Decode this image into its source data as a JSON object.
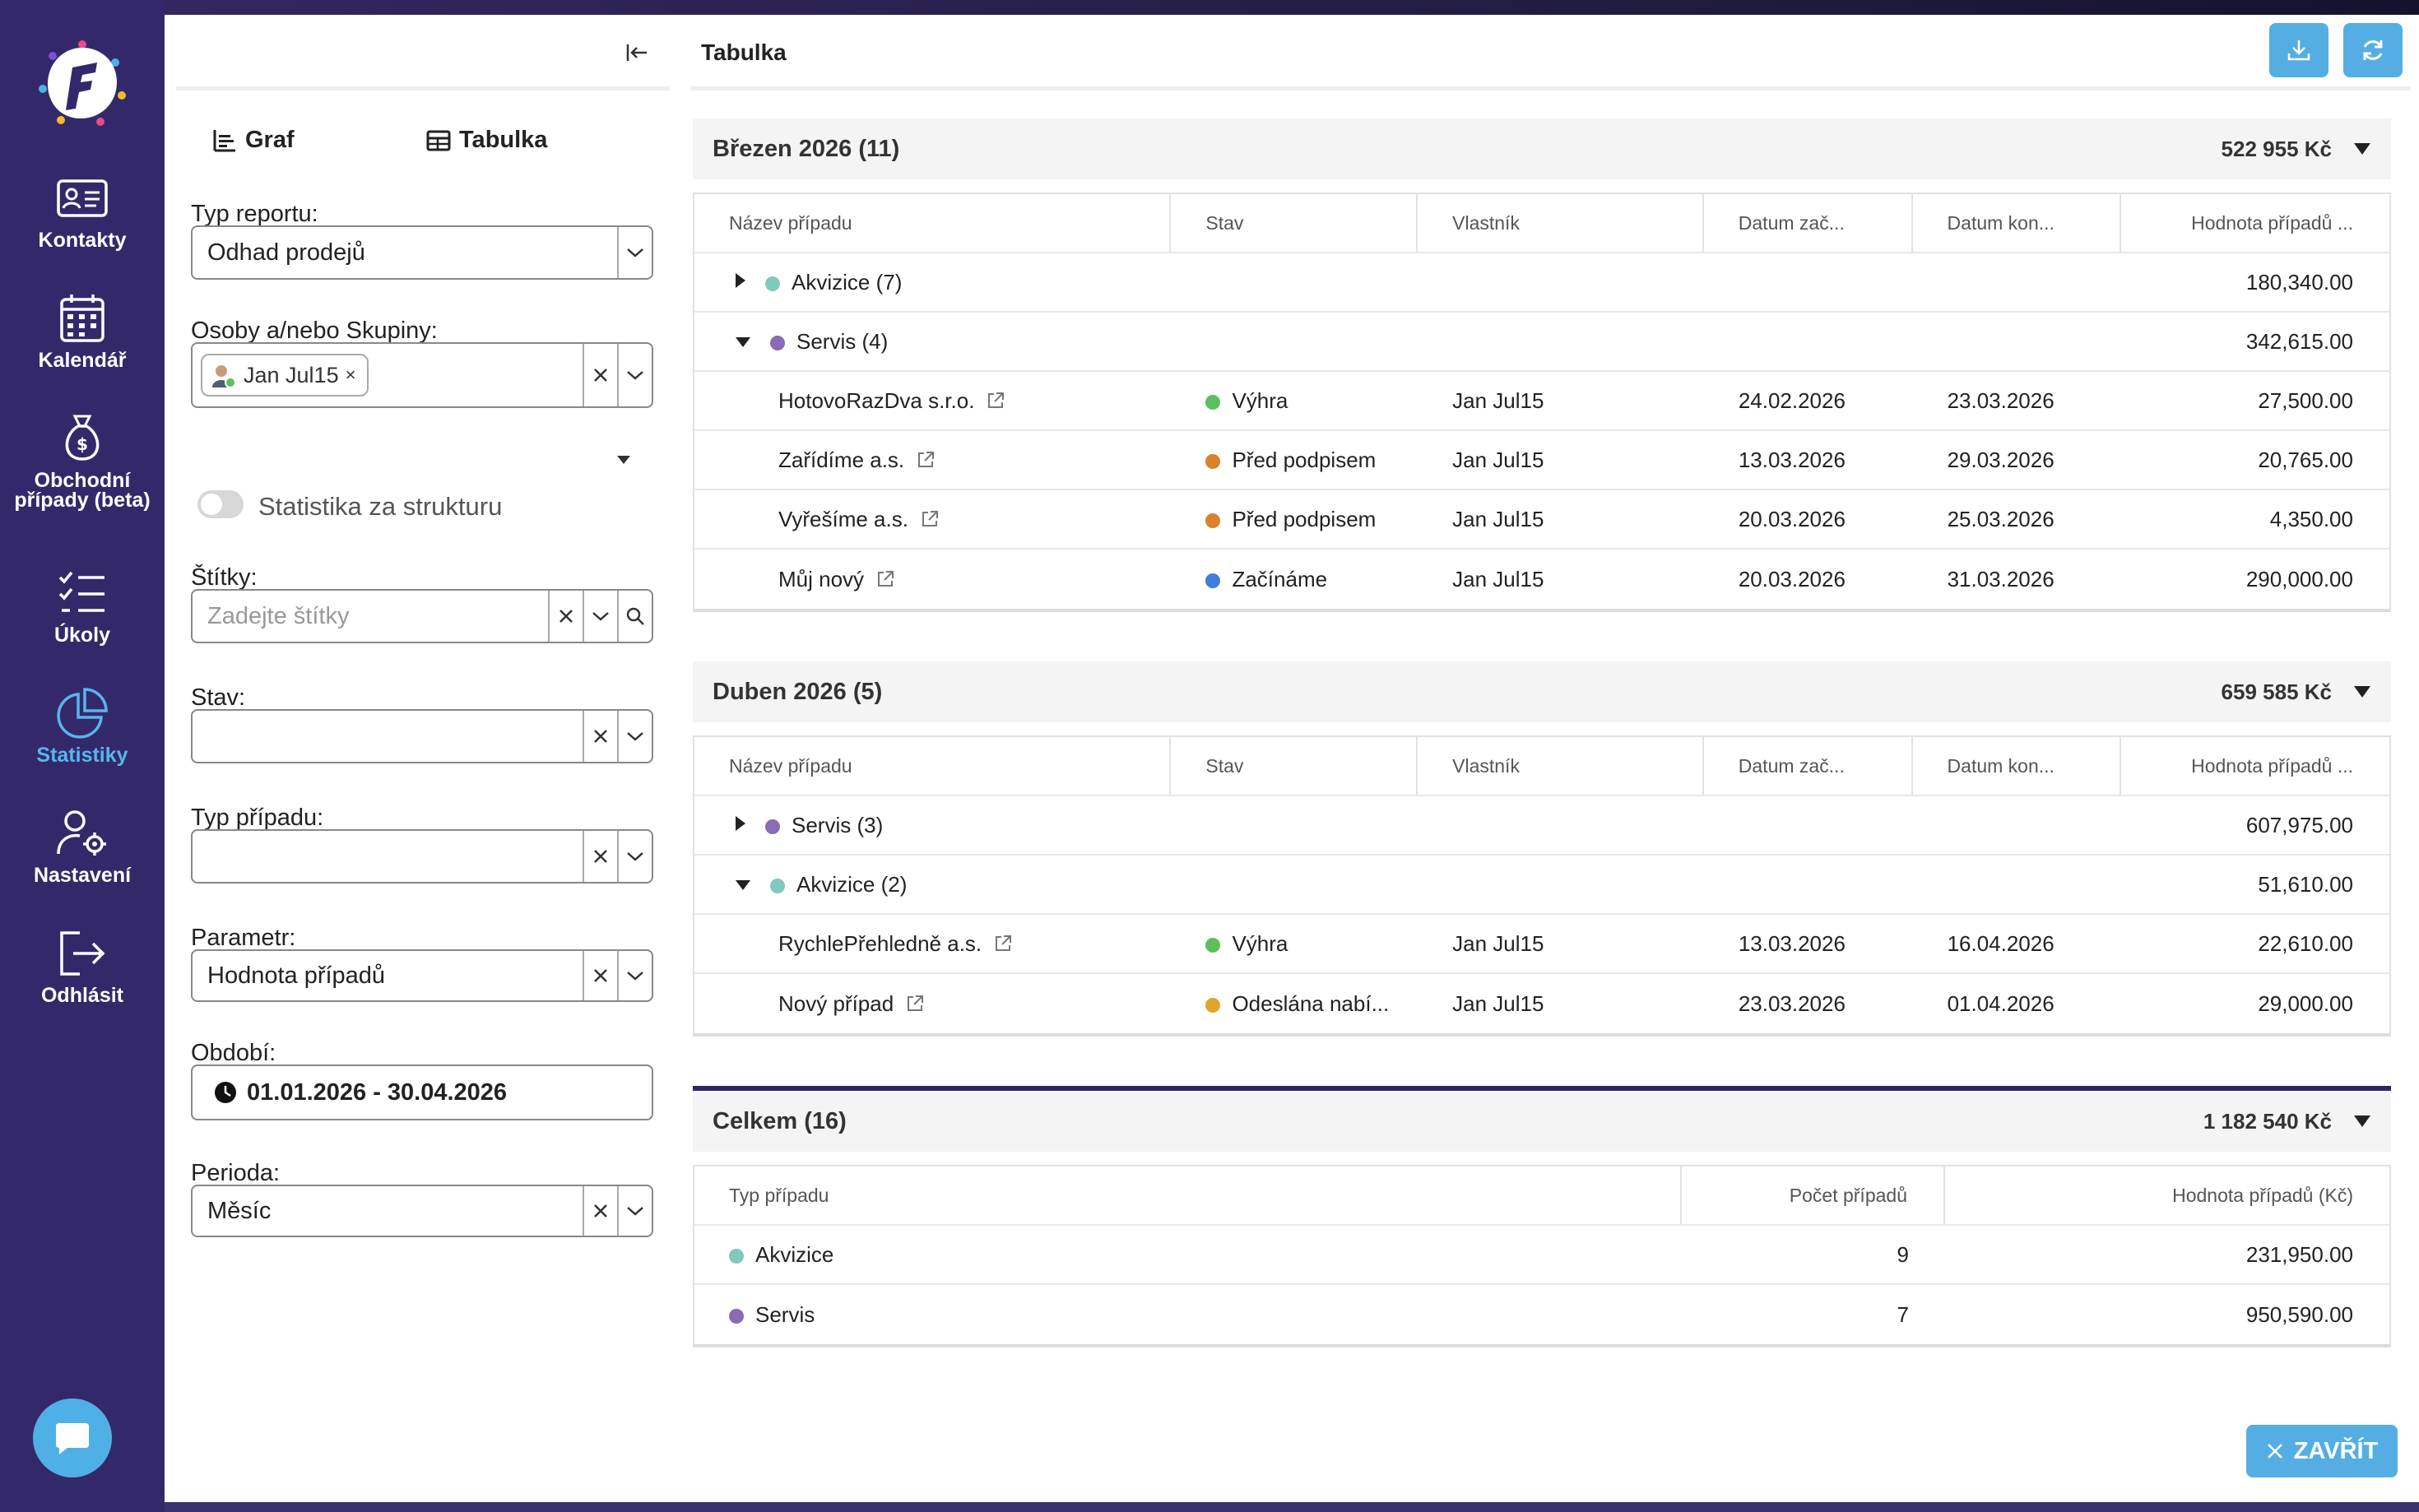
{
  "nav": {
    "items": [
      {
        "label": "Kontakty",
        "icon": "contact-card-icon"
      },
      {
        "label": "Kalendář",
        "icon": "calendar-icon"
      },
      {
        "label": "Obchodní případy (beta)",
        "icon": "money-bag-icon"
      },
      {
        "label": "Úkoly",
        "icon": "checklist-icon"
      },
      {
        "label": "Statistiky",
        "icon": "pie-chart-icon",
        "active": true
      },
      {
        "label": "Nastavení",
        "icon": "user-gear-icon"
      },
      {
        "label": "Odhlásit",
        "icon": "logout-icon"
      }
    ]
  },
  "filters": {
    "view_tabs": {
      "graph": "Graf",
      "table": "Tabulka"
    },
    "report_type": {
      "label": "Typ reportu:",
      "value": "Odhad prodejů"
    },
    "persons": {
      "label": "Osoby a/nebo Skupiny:",
      "chip": "Jan Jul15"
    },
    "structure_toggle": "Statistika za strukturu",
    "tags": {
      "label": "Štítky:",
      "placeholder": "Zadejte štítky"
    },
    "status": {
      "label": "Stav:",
      "value": ""
    },
    "case_type": {
      "label": "Typ případu:",
      "value": ""
    },
    "parameter": {
      "label": "Parametr:",
      "value": "Hodnota případů"
    },
    "period_range": {
      "label": "Období:",
      "value": "01.01.2026 - 30.04.2026"
    },
    "period": {
      "label": "Perioda:",
      "value": "Měsíc"
    }
  },
  "content": {
    "title": "Tabulka",
    "columns": [
      "Název případu",
      "Stav",
      "Vlastník",
      "Datum zač...",
      "Datum kon...",
      "Hodnota případů ..."
    ],
    "sections": [
      {
        "name": "Březen 2026 (11)",
        "sum": "522 955 Kč",
        "groups": [
          {
            "name": "Akvizice (7)",
            "color": "#7fc9bd",
            "expanded": false,
            "value": "180,340.00",
            "items": []
          },
          {
            "name": "Servis (4)",
            "color": "#8a6bb5",
            "expanded": true,
            "value": "342,615.00",
            "items": [
              {
                "name": "HotovoRazDva s.r.o.",
                "status": "Výhra",
                "status_color": "#5cbf5c",
                "owner": "Jan Jul15",
                "start": "24.02.2026",
                "end": "23.03.2026",
                "value": "27,500.00"
              },
              {
                "name": "Zařídíme a.s.",
                "status": "Před podpisem",
                "status_color": "#d9822b",
                "owner": "Jan Jul15",
                "start": "13.03.2026",
                "end": "29.03.2026",
                "value": "20,765.00"
              },
              {
                "name": "Vyřešíme a.s.",
                "status": "Před podpisem",
                "status_color": "#d9822b",
                "owner": "Jan Jul15",
                "start": "20.03.2026",
                "end": "25.03.2026",
                "value": "4,350.00"
              },
              {
                "name": "Můj nový",
                "status": "Začínáme",
                "status_color": "#3d7fe0",
                "owner": "Jan Jul15",
                "start": "20.03.2026",
                "end": "31.03.2026",
                "value": "290,000.00"
              }
            ]
          }
        ]
      },
      {
        "name": "Duben 2026 (5)",
        "sum": "659 585 Kč",
        "groups": [
          {
            "name": "Servis (3)",
            "color": "#8a6bb5",
            "expanded": false,
            "value": "607,975.00",
            "items": []
          },
          {
            "name": "Akvizice (2)",
            "color": "#7fc9bd",
            "expanded": true,
            "value": "51,610.00",
            "items": [
              {
                "name": "RychlePřehledně a.s.",
                "status": "Výhra",
                "status_color": "#5cbf5c",
                "owner": "Jan Jul15",
                "start": "13.03.2026",
                "end": "16.04.2026",
                "value": "22,610.00"
              },
              {
                "name": "Nový případ",
                "status": "Odeslána nabí...",
                "status_color": "#e0a52a",
                "owner": "Jan Jul15",
                "start": "23.03.2026",
                "end": "01.04.2026",
                "value": "29,000.00"
              }
            ]
          }
        ]
      }
    ],
    "total": {
      "name": "Celkem (16)",
      "sum": "1 182 540 Kč",
      "columns": [
        "Typ případu",
        "Počet případů",
        "Hodnota případů (Kč)"
      ],
      "rows": [
        {
          "type": "Akvizice",
          "color": "#7fc9bd",
          "count": "9",
          "value": "231,950.00"
        },
        {
          "type": "Servis",
          "color": "#8a6bb5",
          "count": "7",
          "value": "950,590.00"
        }
      ]
    },
    "close_label": "ZAVŘÍT"
  }
}
